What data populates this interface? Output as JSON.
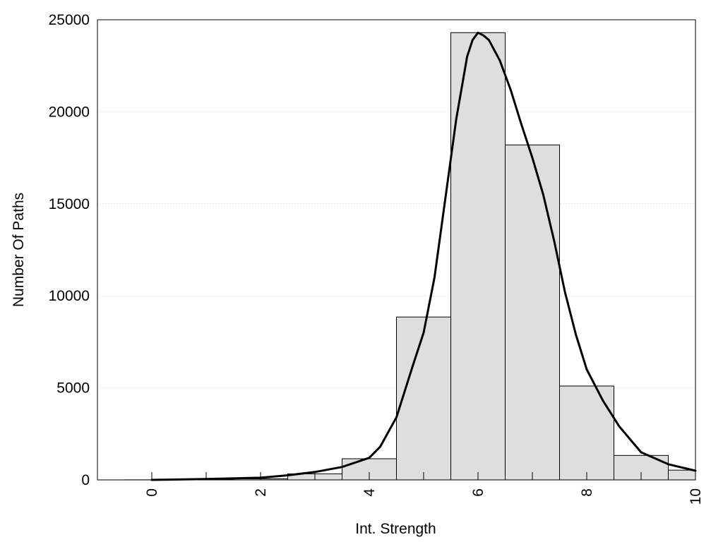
{
  "chart_data": {
    "type": "bar",
    "xlabel": "Int. Strength",
    "ylabel": "Number Of Paths",
    "xlim": [
      -1,
      10
    ],
    "ylim": [
      0,
      25000
    ],
    "x_ticks": [
      "0",
      "2",
      "4",
      "6",
      "8",
      "10"
    ],
    "y_ticks": [
      "0",
      "5000",
      "10000",
      "15000",
      "20000",
      "25000"
    ],
    "grid": "horizontal dotted",
    "bin_width": 1,
    "bins": [
      {
        "center": 0,
        "value": 5
      },
      {
        "center": 1,
        "value": 15
      },
      {
        "center": 2,
        "value": 60
      },
      {
        "center": 3,
        "value": 330
      },
      {
        "center": 4,
        "value": 1150
      },
      {
        "center": 5,
        "value": 8850
      },
      {
        "center": 6,
        "value": 24300
      },
      {
        "center": 7,
        "value": 18200
      },
      {
        "center": 8,
        "value": 5100
      },
      {
        "center": 9,
        "value": 1330
      },
      {
        "center": 10,
        "value": 530
      }
    ],
    "fit_curve": {
      "x": [
        0,
        1,
        2,
        2.5,
        3,
        3.5,
        4,
        4.2,
        4.5,
        4.8,
        5,
        5.2,
        5.4,
        5.6,
        5.8,
        5.9,
        6,
        6.1,
        6.2,
        6.4,
        6.6,
        6.8,
        7,
        7.2,
        7.4,
        7.6,
        7.8,
        8,
        8.3,
        8.6,
        9,
        9.5,
        10
      ],
      "y": [
        0,
        50,
        120,
        250,
        430,
        700,
        1200,
        1800,
        3400,
        6200,
        8000,
        11000,
        15300,
        19600,
        23000,
        23900,
        24300,
        24150,
        23900,
        22800,
        21200,
        19300,
        17500,
        15500,
        13000,
        10200,
        7900,
        6000,
        4300,
        2900,
        1500,
        850,
        500
      ]
    },
    "bar_fill": "#dedede",
    "bar_stroke": "#000000",
    "curve_color": "#000000"
  }
}
